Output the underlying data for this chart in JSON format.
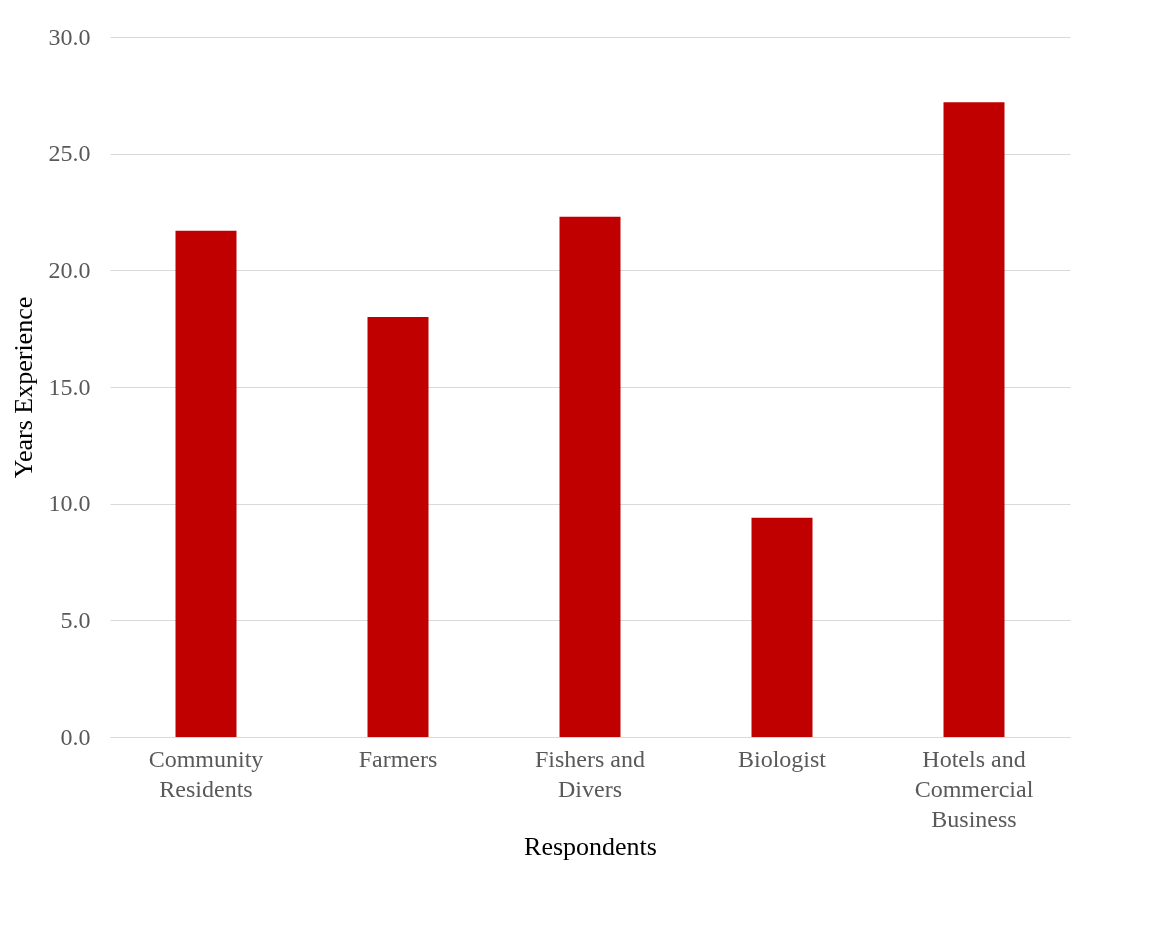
{
  "chart_data": {
    "type": "bar",
    "xlabel": "Respondents",
    "ylabel": "Years Experience",
    "categories": [
      "Community Residents",
      "Farmers",
      "Fishers and Divers",
      "Biologist",
      "Hotels and Commercial Business"
    ],
    "values": [
      21.7,
      18.0,
      22.3,
      9.4,
      27.2
    ],
    "color": "#c00000",
    "ylim": [
      0,
      30
    ],
    "yticks": [
      {
        "value": 0,
        "label": "0.0"
      },
      {
        "value": 5,
        "label": "5.0"
      },
      {
        "value": 10,
        "label": "10.0"
      },
      {
        "value": 15,
        "label": "15.0"
      },
      {
        "value": 20,
        "label": "20.0"
      },
      {
        "value": 25,
        "label": "25.0"
      },
      {
        "value": 30,
        "label": "30.0"
      }
    ],
    "grid": "y"
  }
}
